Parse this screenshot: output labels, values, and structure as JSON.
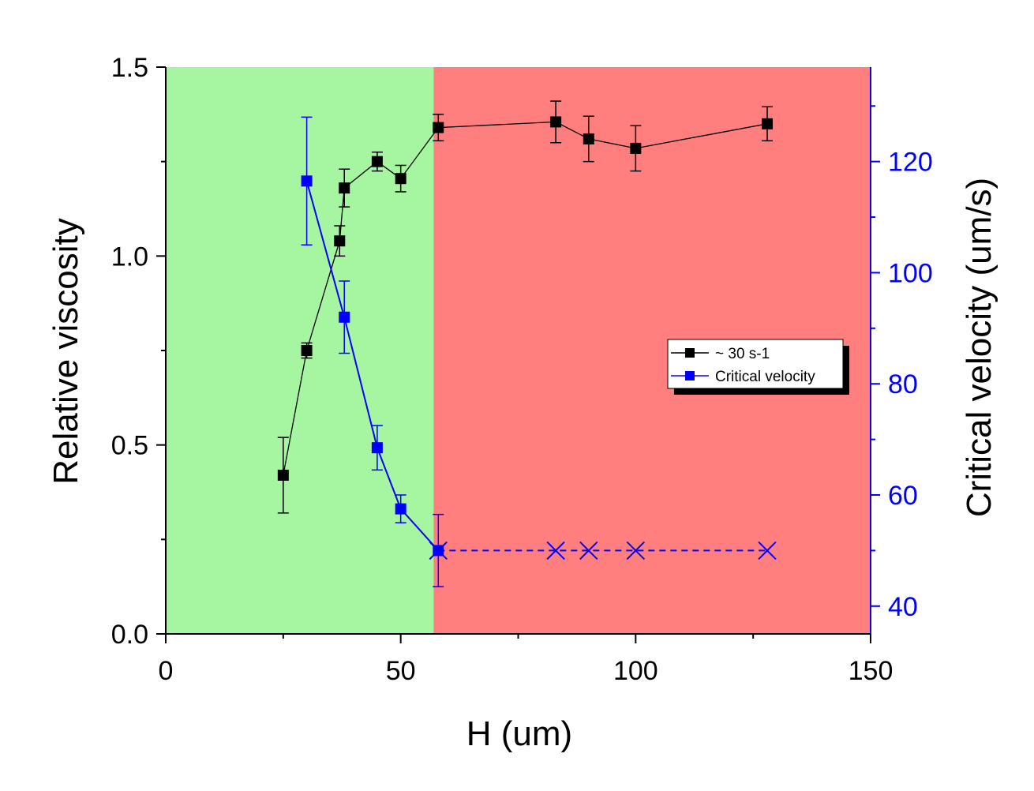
{
  "chart_data": {
    "type": "line",
    "title": "",
    "xlabel": "H (um)",
    "ylabel": "Relative viscosity",
    "y2label": "Critical velocity (um/s)",
    "xlim": [
      0,
      150
    ],
    "ylim": [
      0,
      1.5
    ],
    "y2lim": [
      35,
      137
    ],
    "x_ticks": [
      0,
      50,
      100,
      150
    ],
    "y_ticks": [
      0.0,
      0.5,
      1.0,
      1.5
    ],
    "y_tick_labels": [
      "0.0",
      "0.5",
      "1.0",
      "1.5"
    ],
    "y2_ticks": [
      40,
      60,
      80,
      100,
      120
    ],
    "grid": false,
    "legend_position": "center-right",
    "regions": [
      {
        "x_from": 0,
        "x_to": 57,
        "color": "#a6f5a0"
      },
      {
        "x_from": 57,
        "x_to": 150,
        "color": "#ff7f7f"
      }
    ],
    "series": [
      {
        "name": "~ 30 s-1",
        "axis": "left",
        "color": "#000000",
        "x": [
          25,
          30,
          37,
          38,
          45,
          50,
          58,
          83,
          90,
          100,
          128
        ],
        "y": [
          0.42,
          0.75,
          1.04,
          1.18,
          1.25,
          1.205,
          1.34,
          1.355,
          1.31,
          1.285,
          1.35
        ],
        "err": [
          0.1,
          0.02,
          0.04,
          0.05,
          0.025,
          0.035,
          0.035,
          0.055,
          0.06,
          0.06,
          0.045
        ]
      },
      {
        "name": "Critical velocity",
        "axis": "right",
        "color": "#0000ff",
        "x": [
          30,
          38,
          45,
          50,
          58
        ],
        "y": [
          116.5,
          92.0,
          68.5,
          57.5,
          50.0
        ],
        "err": [
          11.5,
          6.5,
          4.0,
          2.5,
          6.5
        ]
      },
      {
        "name": "",
        "axis": "right",
        "color": "#0000ff",
        "style": "dashed-cross",
        "x": [
          58,
          83,
          90,
          100,
          128
        ],
        "y": [
          50,
          50,
          50,
          50,
          50
        ]
      }
    ]
  }
}
